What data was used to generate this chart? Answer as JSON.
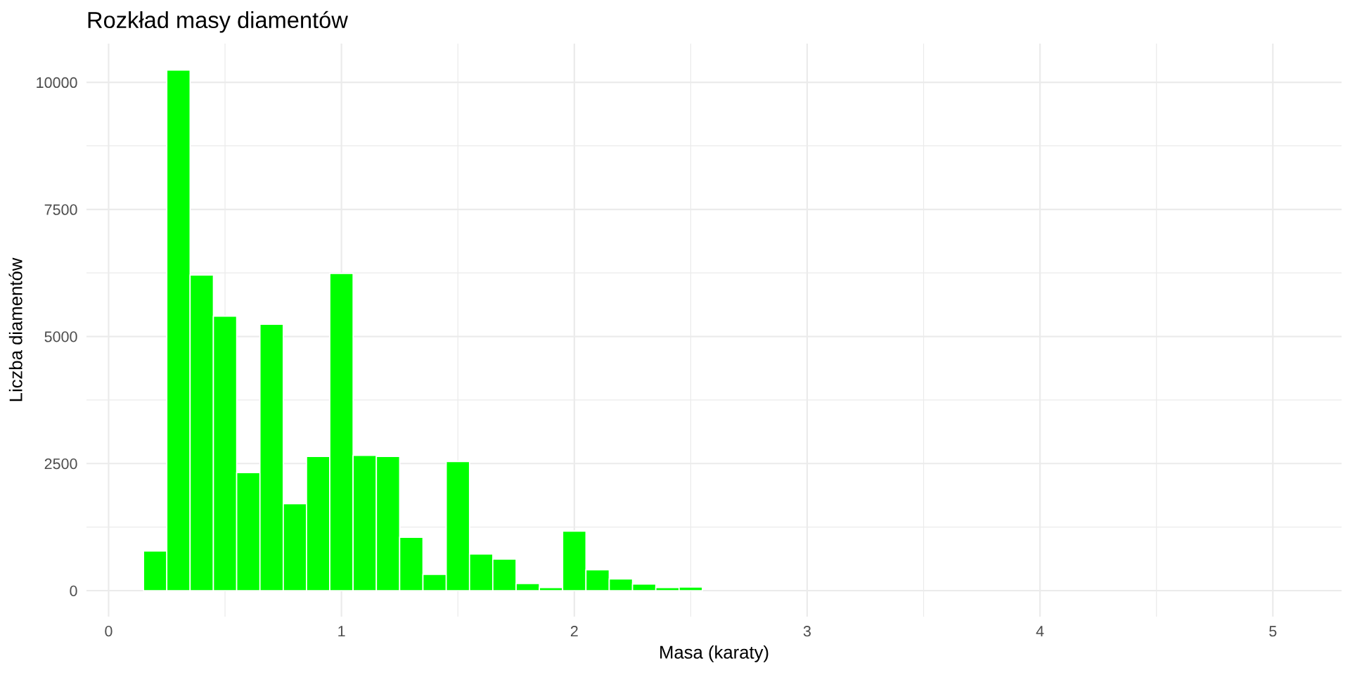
{
  "chart_data": {
    "type": "histogram",
    "title": "Rozkład masy diamentów",
    "xlabel": "Masa (karaty)",
    "ylabel": "Liczba diamentów",
    "bins": [
      0.15,
      0.25,
      0.35,
      0.45,
      0.55,
      0.65,
      0.75,
      0.85,
      0.95,
      1.05,
      1.15,
      1.25,
      1.35,
      1.45,
      1.55,
      1.65,
      1.75,
      1.85,
      1.95,
      2.05,
      2.15,
      2.25,
      2.35,
      2.45,
      2.55
    ],
    "values": [
      780,
      10240,
      6210,
      5400,
      2320,
      5240,
      1710,
      2640,
      6240,
      2660,
      2640,
      1050,
      320,
      2540,
      720,
      620,
      140,
      60,
      1170,
      410,
      230,
      130,
      60,
      70
    ],
    "color": "#00ff00",
    "xlim": [
      -0.095,
      5.295
    ],
    "ylim": [
      -512,
      10762
    ],
    "xticks": [
      0,
      1,
      2,
      3,
      4,
      5
    ],
    "yticks": [
      0,
      2500,
      5000,
      7500,
      10000
    ],
    "grid": true
  }
}
